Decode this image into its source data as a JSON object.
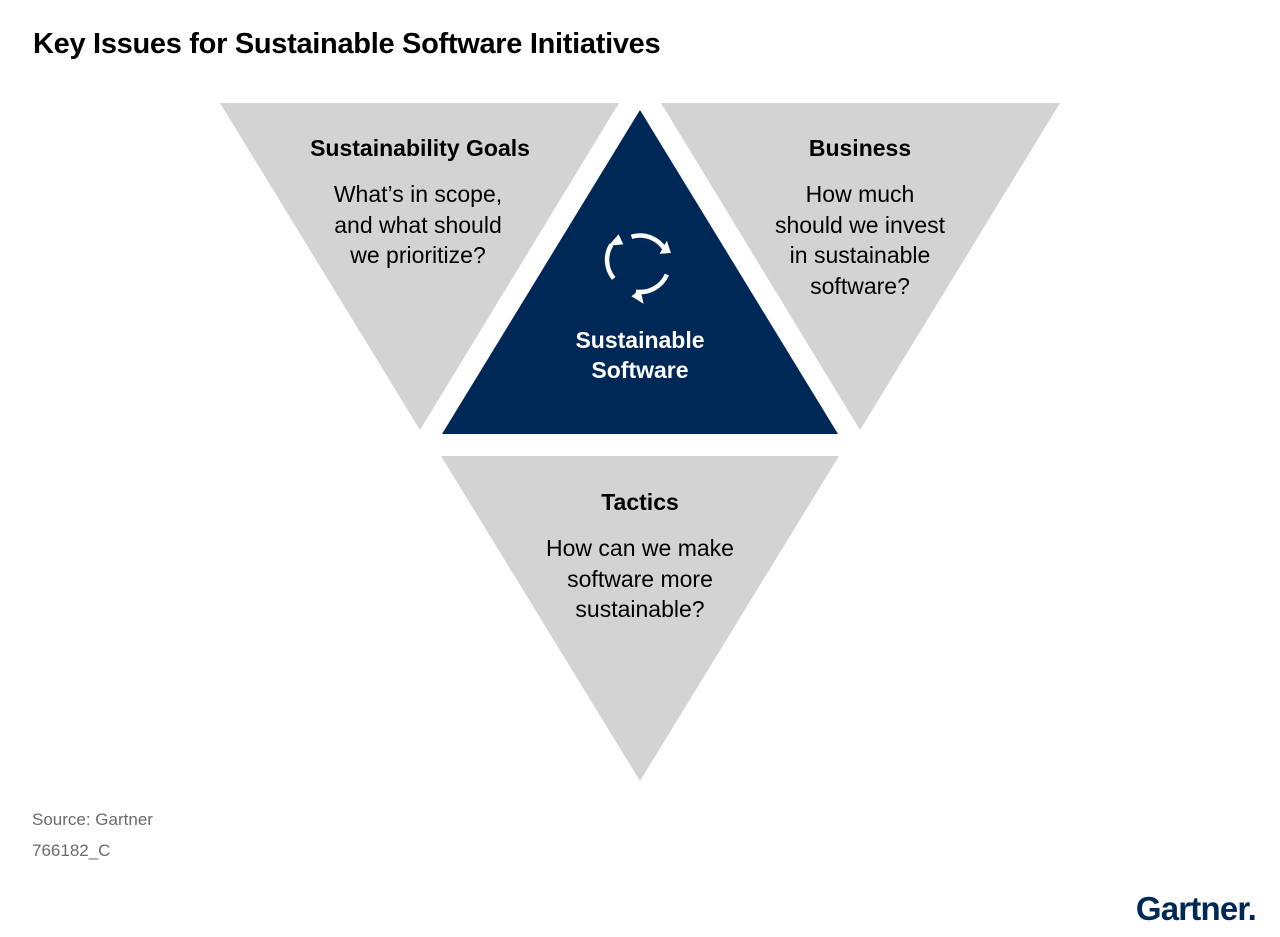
{
  "title": "Key Issues for Sustainable Software Initiatives",
  "colors": {
    "gray_triangle": "#d3d3d3",
    "center_triangle": "#002856",
    "brand": "#002856",
    "source_text": "#6b6b6b"
  },
  "center": {
    "icon": "recycle-arrows-icon",
    "label": "Sustainable\nSoftware"
  },
  "triangles": [
    {
      "heading": "Sustainability Goals",
      "question": "What’s in scope,\nand what should\nwe prioritize?"
    },
    {
      "heading": "Business",
      "question": "How much\nshould we invest\nin sustainable\nsoftware?"
    },
    {
      "heading": "Tactics",
      "question": "How can we make\nsoftware more\nsustainable?"
    }
  ],
  "footer": {
    "source": "Source: Gartner",
    "doc_id": "766182_C"
  },
  "logo": {
    "text": "Gartner",
    "mark": "."
  }
}
